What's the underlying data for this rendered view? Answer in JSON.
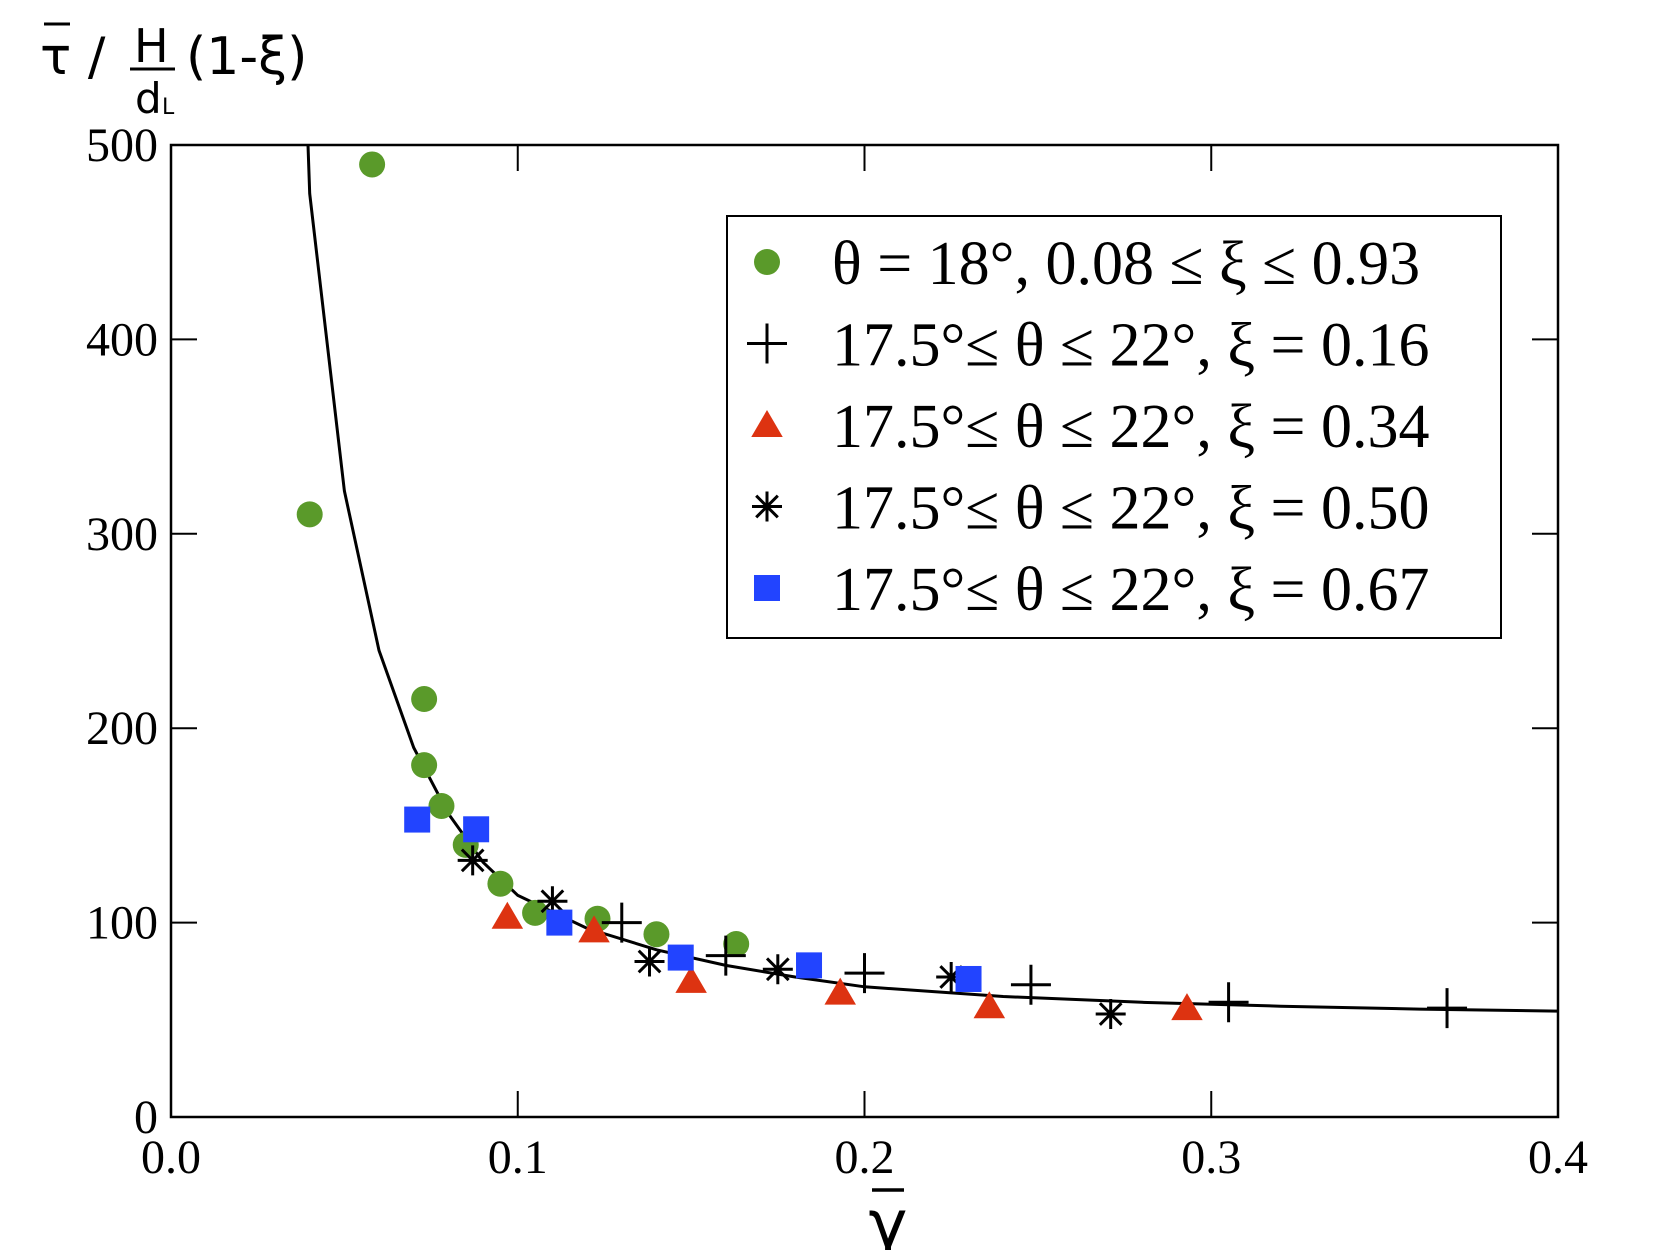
{
  "chart_data": {
    "type": "scatter",
    "xlabel": "γ",
    "ylabel": {
      "left": "τ /",
      "numerator": "H",
      "denominator": "d",
      "denominator_sub": "L",
      "right": "(1-ξ)"
    },
    "xlim": [
      0.0,
      0.4
    ],
    "ylim": [
      0,
      500
    ],
    "x_ticks": [
      "0.0",
      "0.1",
      "0.2",
      "0.3",
      "0.4"
    ],
    "y_ticks": [
      "0",
      "100",
      "200",
      "300",
      "400",
      "500"
    ],
    "grid": false,
    "legend_position": "top-right",
    "series": [
      {
        "name": "θ = 18°, 0.08 ≤ ξ ≤ 0.93",
        "marker": "circle",
        "color": "#5a9a2a",
        "points": [
          [
            0.04,
            310
          ],
          [
            0.058,
            490
          ],
          [
            0.073,
            215
          ],
          [
            0.073,
            181
          ],
          [
            0.078,
            160
          ],
          [
            0.085,
            140
          ],
          [
            0.095,
            120
          ],
          [
            0.105,
            105
          ],
          [
            0.123,
            102
          ],
          [
            0.14,
            94
          ],
          [
            0.163,
            89
          ]
        ]
      },
      {
        "name": "17.5°≤ θ ≤ 22°, ξ = 0.16",
        "marker": "plus",
        "color": "#000000",
        "points": [
          [
            0.13,
            100
          ],
          [
            0.16,
            83
          ],
          [
            0.2,
            74
          ],
          [
            0.248,
            68
          ],
          [
            0.305,
            59
          ],
          [
            0.368,
            56
          ]
        ]
      },
      {
        "name": "17.5°≤ θ ≤ 22°, ξ = 0.34",
        "marker": "triangle",
        "color": "#dd3311",
        "points": [
          [
            0.097,
            103
          ],
          [
            0.122,
            96
          ],
          [
            0.15,
            70
          ],
          [
            0.193,
            64
          ],
          [
            0.236,
            57
          ],
          [
            0.293,
            56
          ]
        ]
      },
      {
        "name": "17.5°≤ θ ≤ 22°, ξ = 0.50",
        "marker": "asterisk",
        "color": "#000000",
        "points": [
          [
            0.087,
            132
          ],
          [
            0.11,
            111
          ],
          [
            0.138,
            80
          ],
          [
            0.175,
            76
          ],
          [
            0.225,
            72
          ],
          [
            0.271,
            53
          ]
        ]
      },
      {
        "name": "17.5°≤ θ ≤ 22°, ξ = 0.67",
        "marker": "square",
        "color": "#2244ff",
        "points": [
          [
            0.071,
            153
          ],
          [
            0.088,
            148
          ],
          [
            0.112,
            100
          ],
          [
            0.147,
            82
          ],
          [
            0.184,
            78
          ],
          [
            0.23,
            71
          ]
        ]
      }
    ],
    "fit_curve": {
      "color": "#000000",
      "points": [
        [
          0.0395,
          500
        ],
        [
          0.04,
          475
        ],
        [
          0.05,
          322
        ],
        [
          0.06,
          240
        ],
        [
          0.07,
          190
        ],
        [
          0.08,
          156
        ],
        [
          0.09,
          131
        ],
        [
          0.1,
          114
        ],
        [
          0.12,
          97
        ],
        [
          0.14,
          86
        ],
        [
          0.16,
          78
        ],
        [
          0.18,
          72
        ],
        [
          0.2,
          67
        ],
        [
          0.24,
          62
        ],
        [
          0.28,
          59
        ],
        [
          0.32,
          57
        ],
        [
          0.36,
          55.5
        ],
        [
          0.4,
          54.5
        ]
      ]
    }
  }
}
